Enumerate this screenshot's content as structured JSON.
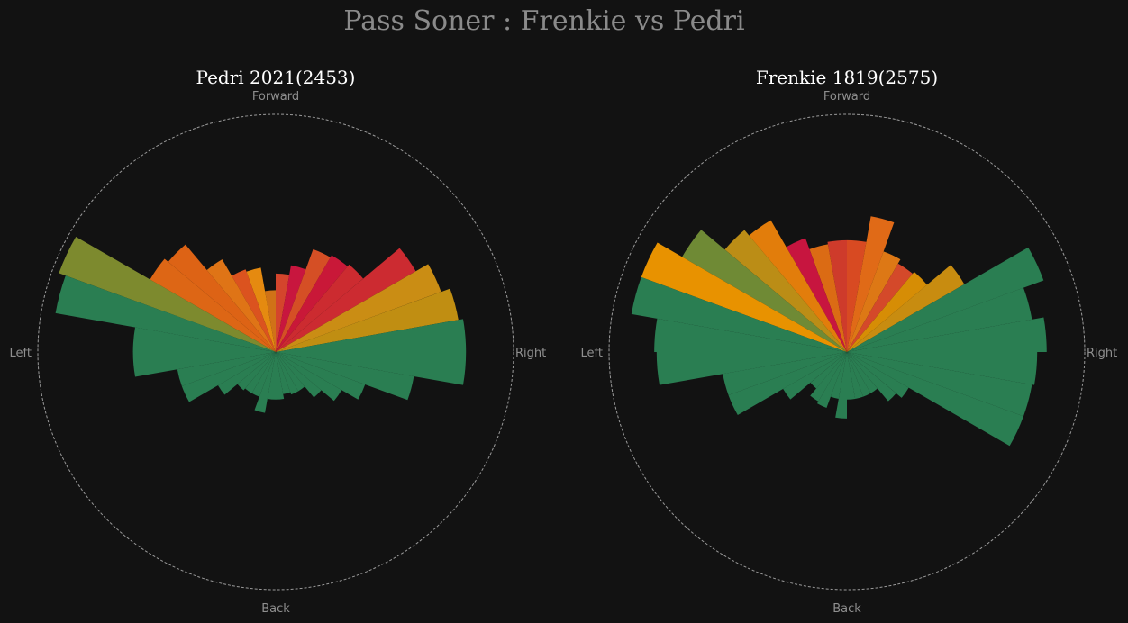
{
  "title": "Pass Soner : Frenkie vs Pedri",
  "direction_labels": {
    "top": "Forward",
    "bottom": "Back",
    "left": "Left",
    "right": "Right"
  },
  "chart_data": [
    {
      "type": "polar-bar",
      "title": "Pedri 2021(2453)",
      "bin_width_deg": 10,
      "angles_deg": [
        85,
        95,
        75,
        105,
        65,
        115,
        55,
        125,
        45,
        135,
        35,
        145,
        25,
        155,
        15,
        165,
        5,
        175,
        -5,
        -175,
        -15,
        -165,
        -25,
        -155,
        -35,
        -145,
        -45,
        -135,
        -55,
        -125,
        -65,
        -115,
        -75,
        -105,
        -85,
        -95
      ],
      "lengths": [
        0.33,
        0.26,
        0.37,
        0.36,
        0.46,
        0.37,
        0.47,
        0.45,
        0.48,
        0.59,
        0.68,
        0.61,
        0.74,
        0.97,
        0.78,
        0.94,
        0.8,
        0.6,
        0.8,
        0.6,
        0.59,
        0.42,
        0.4,
        0.42,
        0.32,
        0.28,
        0.25,
        0.21,
        0.19,
        0.2,
        0.19,
        0.2,
        0.18,
        0.26,
        0.2,
        0.2
      ],
      "colors": [
        "#d4452c",
        "#d07217",
        "#c8163e",
        "#e58a10",
        "#d54f25",
        "#db531f",
        "#c91838",
        "#df7416",
        "#cc2b30",
        "#dd6315",
        "#cc2b31",
        "#dd6615",
        "#ca8d14",
        "#7d8a2e",
        "#c08e12",
        "#2a7e52",
        "#2a7e52",
        "#2a7e52",
        "#2a7e52",
        "#2a7e52",
        "#2a7e52",
        "#2a7e52",
        "#2a7e52",
        "#2a7e52",
        "#2a7e52",
        "#2a7e52",
        "#2a7e52",
        "#2a7e52",
        "#2a7e52",
        "#2a7e52",
        "#2a7e52",
        "#2a7e52",
        "#2a7e52",
        "#2a7e52",
        "#2a7e52",
        "#2a7e52"
      ]
    },
    {
      "type": "polar-bar",
      "title": "Frenkie 1819(2575)",
      "bin_width_deg": 10,
      "angles_deg": [
        85,
        95,
        75,
        105,
        65,
        115,
        55,
        125,
        45,
        135,
        35,
        145,
        25,
        155,
        15,
        165,
        5,
        175,
        -5,
        -175,
        -15,
        -165,
        -25,
        -155,
        -35,
        -145,
        -45,
        -135,
        -55,
        -125,
        -65,
        -115,
        -75,
        -105,
        -85,
        -95
      ],
      "lengths": [
        0.47,
        0.47,
        0.58,
        0.46,
        0.45,
        0.51,
        0.43,
        0.64,
        0.44,
        0.67,
        0.57,
        0.8,
        0.88,
        0.92,
        0.79,
        0.92,
        0.84,
        0.81,
        0.8,
        0.8,
        0.79,
        0.53,
        0.79,
        0.53,
        0.3,
        0.31,
        0.27,
        0.2,
        0.2,
        0.24,
        0.2,
        0.25,
        0.2,
        0.2,
        0.2,
        0.28
      ],
      "colors": [
        "#d84a22",
        "#ce3b2b",
        "#e06a17",
        "#db6b14",
        "#dd7815",
        "#c7153f",
        "#d4492a",
        "#e27d0b",
        "#d68d05",
        "#bb8d16",
        "#c88c10",
        "#6f8a35",
        "#2a7e52",
        "#e89200",
        "#2a7e52",
        "#2a7e52",
        "#2a7e52",
        "#2a7e52",
        "#2a7e52",
        "#2a7e52",
        "#2a7e52",
        "#2a7e52",
        "#2a7e52",
        "#2a7e52",
        "#2a7e52",
        "#2a7e52",
        "#2a7e52",
        "#2a7e52",
        "#2a7e52",
        "#2a7e52",
        "#2a7e52",
        "#2a7e52",
        "#2a7e52",
        "#2a7e52",
        "#2a7e52",
        "#2a7e52"
      ]
    }
  ]
}
